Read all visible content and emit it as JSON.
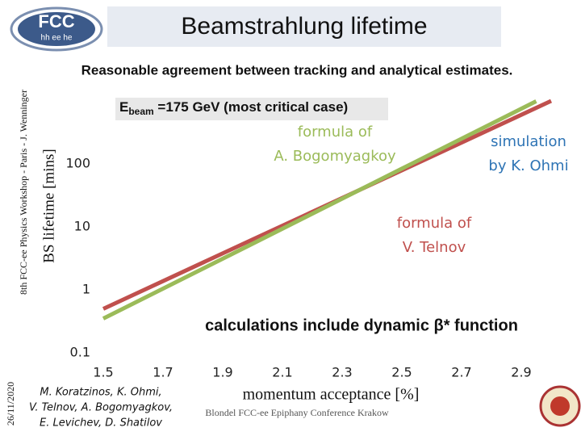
{
  "logo": {
    "main": "FCC",
    "sub": "hh ee he"
  },
  "footer": {
    "vertical": "8th FCC-ee Physics Workshop - Paris - J. Wenninger",
    "date": "26/11/2020",
    "authors": [
      "M. Koratzinos, K. Ohmi,",
      "V. Telnov, A. Bogomyagkov,",
      "E. Levichev, D. Shatilov"
    ],
    "conference": "Blondel FCC-ee Epiphany Conference Krakow"
  },
  "chart_data": {
    "type": "line",
    "title": "Beamstrahlung lifetime",
    "subtitle": "Reasonable agreement between tracking and analytical estimates.",
    "xlabel": "momentum acceptance [%]",
    "ylabel": "BS lifetime [mins]",
    "xlim": [
      1.5,
      3.0
    ],
    "xticks": [
      1.5,
      1.7,
      1.9,
      2.1,
      2.3,
      2.5,
      2.7,
      2.9
    ],
    "ylim": [
      0.1,
      1000
    ],
    "yscale": "log",
    "yticks": [
      0.1,
      1,
      10,
      100
    ],
    "grid": false,
    "series": [
      {
        "color": "#c0504d",
        "x": [
          1.5,
          2.0,
          2.5,
          3.0
        ],
        "values": [
          0.5,
          6.3,
          79,
          1000
        ]
      },
      {
        "color": "#9bbb59",
        "x": [
          1.5,
          2.0,
          2.5,
          2.95
        ],
        "values": [
          0.35,
          5.4,
          84,
          990
        ]
      }
    ],
    "annotations": {
      "beam": {
        "symbol": "E",
        "sub": "beam",
        "text": " =175 GeV (most critical case)"
      },
      "bogomyagkov": {
        "color": "#9bbb59",
        "lines": [
          "formula of",
          "A. Bogomyagkoy"
        ]
      },
      "ohmi": {
        "color": "#2e74b5",
        "lines": [
          "simulation",
          "by K. Ohmi"
        ]
      },
      "telnov": {
        "color": "#c0504d",
        "lines": [
          "formula of",
          "V. Telnov"
        ]
      },
      "note": "calculations include dynamic β* function"
    }
  }
}
